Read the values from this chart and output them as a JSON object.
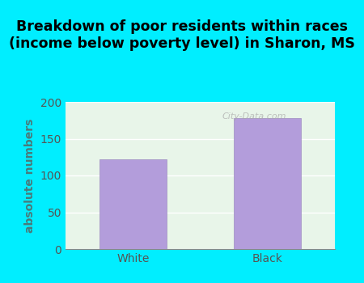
{
  "categories": [
    "White",
    "Black"
  ],
  "values": [
    122,
    178
  ],
  "bar_color": "#b39ddb",
  "bar_edge_color": "#9e8ec0",
  "title": "Breakdown of poor residents within races\n(income below poverty level) in Sharon, MS",
  "ylabel": "absolute numbers",
  "ylim": [
    0,
    200
  ],
  "yticks": [
    0,
    50,
    100,
    150,
    200
  ],
  "title_fontsize": 12.5,
  "label_fontsize": 10,
  "tick_fontsize": 10,
  "bg_outer": "#00eeff",
  "bg_plot": "#e8f5e9",
  "watermark": "City-Data.com",
  "bar_width": 0.5,
  "ylabel_color": "#4a7a7a",
  "tick_color": "#555555"
}
